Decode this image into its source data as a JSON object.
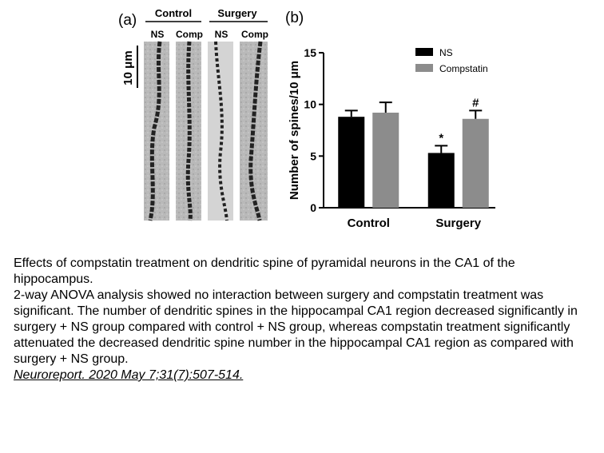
{
  "panel_a": {
    "label": "(a)",
    "groups": [
      {
        "name": "Control",
        "columns": [
          "NS",
          "Comp"
        ]
      },
      {
        "name": "Surgery",
        "columns": [
          "NS",
          "Comp"
        ]
      }
    ],
    "scale_bar": "10 μm"
  },
  "chart_data": {
    "type": "bar",
    "panel_label": "(b)",
    "ylabel": "Number of spines/10 μm",
    "categories": [
      "Control",
      "Surgery"
    ],
    "series": [
      {
        "name": "NS",
        "color": "#000000",
        "values": [
          8.8,
          5.3
        ],
        "errors": [
          0.6,
          0.7
        ],
        "markers": [
          null,
          "*"
        ]
      },
      {
        "name": "Compstatin",
        "color": "#8c8c8c",
        "values": [
          9.2,
          8.6
        ],
        "errors": [
          1.0,
          0.8
        ],
        "markers": [
          null,
          "#"
        ]
      }
    ],
    "ylim": [
      0,
      15
    ],
    "yticks": [
      0,
      5,
      10,
      15
    ],
    "legend": "top-right"
  },
  "caption": {
    "title": "Effects of compstatin treatment on dendritic spine of pyramidal neurons in the CA1 of the hippocampus.",
    "body": "2-way ANOVA analysis showed no interaction between surgery and compstatin treatment was significant. The number of dendritic spines in the hippocampal CA1 region decreased significantly in surgery + NS group compared with control + NS group, whereas compstatin treatment significantly attenuated the decreased dendritic spine number in the hippocampal CA1 region as compared with surgery + NS group.",
    "citation": "Neuroreport. 2020 May 7;31(7):507-514."
  }
}
